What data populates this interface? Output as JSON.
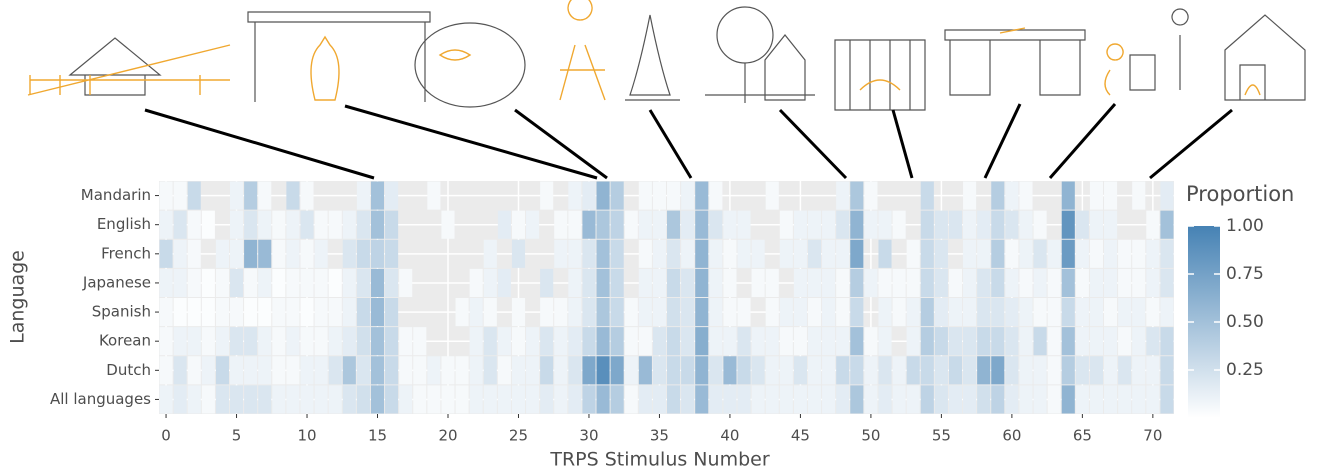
{
  "chart_data": {
    "type": "heatmap",
    "x_label": "TRPS Stimulus Number",
    "y_label": "Language",
    "legend_title": "Proportion",
    "rows": [
      "Mandarin",
      "English",
      "French",
      "Japanese",
      "Spanish",
      "Korean",
      "Dutch",
      "All languages"
    ],
    "x": [
      0,
      1,
      2,
      3,
      4,
      5,
      6,
      7,
      8,
      9,
      10,
      11,
      12,
      13,
      14,
      15,
      16,
      17,
      18,
      19,
      20,
      21,
      22,
      23,
      24,
      25,
      26,
      27,
      28,
      29,
      30,
      31,
      32,
      33,
      34,
      35,
      36,
      37,
      38,
      39,
      40,
      41,
      42,
      43,
      44,
      45,
      46,
      47,
      48,
      49,
      50,
      51,
      52,
      53,
      54,
      55,
      56,
      57,
      58,
      59,
      60,
      61,
      62,
      63,
      64,
      65,
      66,
      67,
      68,
      69,
      70,
      71
    ],
    "xlim": [
      -0.5,
      71.5
    ],
    "xticks": [
      0,
      5,
      10,
      15,
      20,
      25,
      30,
      35,
      40,
      45,
      50,
      55,
      60,
      65,
      70
    ],
    "clim": [
      0,
      1
    ],
    "cticks": [
      0.25,
      {
        "value": 0.5,
        "label": "0.50"
      },
      0.75,
      {
        "value": 1,
        "label": "1.00"
      }
    ],
    "color_low": "#ffffff",
    "color_high": "#4682b4",
    "missing_color": "#ebebeb",
    "values": [
      [
        0.05,
        0.05,
        0.3,
        null,
        null,
        0.1,
        0.4,
        0.05,
        null,
        0.3,
        0.05,
        null,
        null,
        null,
        0.1,
        0.5,
        0.15,
        null,
        null,
        0.05,
        null,
        null,
        null,
        null,
        null,
        null,
        null,
        0.05,
        null,
        0.1,
        0.15,
        0.6,
        0.4,
        null,
        0.05,
        0.05,
        0.05,
        0.1,
        0.55,
        0.05,
        null,
        null,
        null,
        0.05,
        null,
        null,
        null,
        null,
        0.1,
        0.45,
        0.05,
        null,
        null,
        null,
        0.3,
        null,
        null,
        0.05,
        null,
        0.4,
        0.1,
        0.05,
        null,
        null,
        0.6,
        null,
        0.05,
        0.05,
        null,
        0.05,
        null,
        0.15
      ],
      [
        0.1,
        0.2,
        0.05,
        0.02,
        null,
        0.1,
        0.2,
        0.1,
        0.05,
        0.1,
        0.2,
        0.05,
        0.05,
        0.1,
        0.2,
        0.5,
        0.3,
        null,
        null,
        null,
        0.05,
        null,
        null,
        null,
        0.15,
        0.05,
        0.1,
        null,
        0.05,
        0.05,
        0.55,
        0.45,
        0.35,
        0.05,
        0.1,
        0.1,
        0.45,
        0.15,
        0.55,
        0.2,
        0.1,
        0.1,
        null,
        null,
        0.05,
        0.1,
        0.1,
        0.1,
        0.2,
        0.6,
        0.1,
        0.1,
        0.05,
        null,
        0.3,
        0.2,
        0.2,
        0.1,
        0.15,
        0.3,
        0.2,
        0.1,
        0.05,
        null,
        0.85,
        0.2,
        0.1,
        0.1,
        null,
        null,
        0.05,
        0.5
      ],
      [
        0.3,
        0.1,
        0.05,
        null,
        0.1,
        0.1,
        0.6,
        0.55,
        0.05,
        0.1,
        0.05,
        0.1,
        null,
        0.2,
        0.3,
        0.35,
        0.3,
        null,
        null,
        null,
        null,
        null,
        null,
        0.1,
        null,
        0.2,
        null,
        null,
        0.1,
        0.1,
        0.2,
        0.5,
        0.3,
        null,
        0.05,
        0.1,
        0.2,
        0.1,
        0.6,
        0.1,
        0.05,
        0.1,
        0.1,
        null,
        0.1,
        0.1,
        0.2,
        0.1,
        0.1,
        0.7,
        null,
        0.3,
        null,
        0.05,
        0.3,
        0.2,
        null,
        0.1,
        0.1,
        0.4,
        0.05,
        0.1,
        0.2,
        0.1,
        0.8,
        0.1,
        0.05,
        0.1,
        0.05,
        0.05,
        0.1,
        0.2
      ],
      [
        0.1,
        0.1,
        0.05,
        0.02,
        0.05,
        0.2,
        0.05,
        0.1,
        0.02,
        0.05,
        0.05,
        0.05,
        0.02,
        0.1,
        0.2,
        0.55,
        0.2,
        0.05,
        null,
        null,
        null,
        null,
        0.05,
        0.1,
        0.15,
        null,
        null,
        0.2,
        null,
        0.1,
        0.2,
        0.5,
        0.3,
        null,
        0.1,
        0.1,
        0.3,
        0.2,
        0.6,
        0.1,
        0.05,
        null,
        0.05,
        0.05,
        null,
        0.1,
        0.1,
        0.1,
        0.05,
        0.4,
        0.1,
        0.05,
        0.05,
        0.05,
        0.3,
        0.2,
        0.05,
        0.1,
        0.2,
        0.3,
        0.1,
        0.05,
        0.1,
        0.05,
        0.5,
        0.05,
        0.1,
        0.1,
        0.05,
        0.05,
        0.1,
        0.2
      ],
      [
        0.05,
        0.02,
        0.02,
        0.02,
        0.05,
        0.05,
        0.02,
        0.02,
        0.05,
        0.05,
        0.02,
        0.05,
        0.05,
        0.1,
        0.3,
        0.55,
        0.3,
        null,
        null,
        null,
        null,
        0.05,
        0.1,
        0.05,
        null,
        0.05,
        null,
        0.05,
        0.05,
        0.1,
        0.2,
        0.45,
        0.3,
        0.05,
        0.1,
        0.1,
        0.25,
        0.2,
        0.6,
        0.1,
        0.05,
        0.05,
        null,
        0.05,
        0.1,
        0.1,
        0.05,
        0.1,
        0.05,
        0.3,
        null,
        0.1,
        0.05,
        0.1,
        0.4,
        0.15,
        0.1,
        0.1,
        0.2,
        0.2,
        0.15,
        0.1,
        0.05,
        0.05,
        0.3,
        0.1,
        0.1,
        0.05,
        0.1,
        0.1,
        0.05,
        0.1
      ],
      [
        0.05,
        0.1,
        0.1,
        0.05,
        0.1,
        0.2,
        0.2,
        0.1,
        0.05,
        0.1,
        0.05,
        0.05,
        0.1,
        0.15,
        0.25,
        0.5,
        0.3,
        0.05,
        0.05,
        null,
        null,
        null,
        0.1,
        0.2,
        0.1,
        0.05,
        0.1,
        0.2,
        0.1,
        0.15,
        0.3,
        0.55,
        0.4,
        0.05,
        0.05,
        0.2,
        0.3,
        0.2,
        0.65,
        0.1,
        0.1,
        0.2,
        0.1,
        0.1,
        0.05,
        0.05,
        0.1,
        0.1,
        0.1,
        0.5,
        0.05,
        0.1,
        null,
        0.1,
        0.4,
        0.3,
        0.2,
        0.2,
        0.3,
        0.3,
        0.2,
        0.1,
        0.3,
        0.05,
        0.5,
        0.1,
        0.1,
        0.1,
        0.05,
        0.1,
        0.2,
        0.3
      ],
      [
        0.05,
        0.2,
        0.05,
        0.1,
        0.3,
        0.1,
        0.1,
        0.1,
        0.05,
        0.05,
        0.1,
        0.1,
        0.2,
        0.45,
        0.2,
        0.5,
        0.3,
        0.05,
        0.05,
        0.1,
        0.05,
        0.05,
        0.1,
        0.2,
        0.05,
        0.1,
        0.1,
        0.3,
        0.1,
        0.2,
        0.7,
        0.9,
        0.7,
        0.1,
        0.55,
        0.2,
        0.3,
        0.3,
        0.6,
        0.2,
        0.55,
        0.3,
        0.2,
        0.1,
        0.1,
        0.2,
        0.1,
        0.1,
        0.3,
        0.3,
        0.1,
        0.2,
        0.1,
        0.3,
        0.3,
        0.2,
        0.3,
        0.2,
        0.6,
        0.7,
        0.2,
        0.1,
        0.1,
        0.05,
        0.4,
        0.2,
        0.2,
        0.1,
        0.2,
        0.1,
        0.1,
        0.3
      ],
      [
        0.1,
        0.15,
        0.1,
        0.05,
        0.2,
        0.2,
        0.2,
        0.2,
        0.1,
        0.1,
        0.1,
        0.1,
        0.1,
        0.2,
        0.25,
        0.5,
        0.3,
        0.1,
        0.05,
        0.05,
        0.05,
        0.05,
        0.1,
        0.1,
        0.1,
        0.1,
        0.1,
        0.15,
        0.1,
        0.15,
        0.35,
        0.55,
        0.4,
        0.05,
        0.15,
        0.15,
        0.3,
        0.2,
        0.55,
        0.15,
        0.15,
        0.15,
        0.1,
        0.1,
        0.1,
        0.1,
        0.1,
        0.1,
        0.15,
        0.45,
        0.1,
        0.15,
        0.1,
        0.1,
        0.35,
        0.2,
        0.15,
        0.15,
        0.25,
        0.35,
        0.15,
        0.1,
        0.1,
        0.05,
        0.6,
        0.1,
        0.1,
        0.1,
        0.1,
        0.1,
        0.1,
        0.3
      ]
    ]
  }
}
